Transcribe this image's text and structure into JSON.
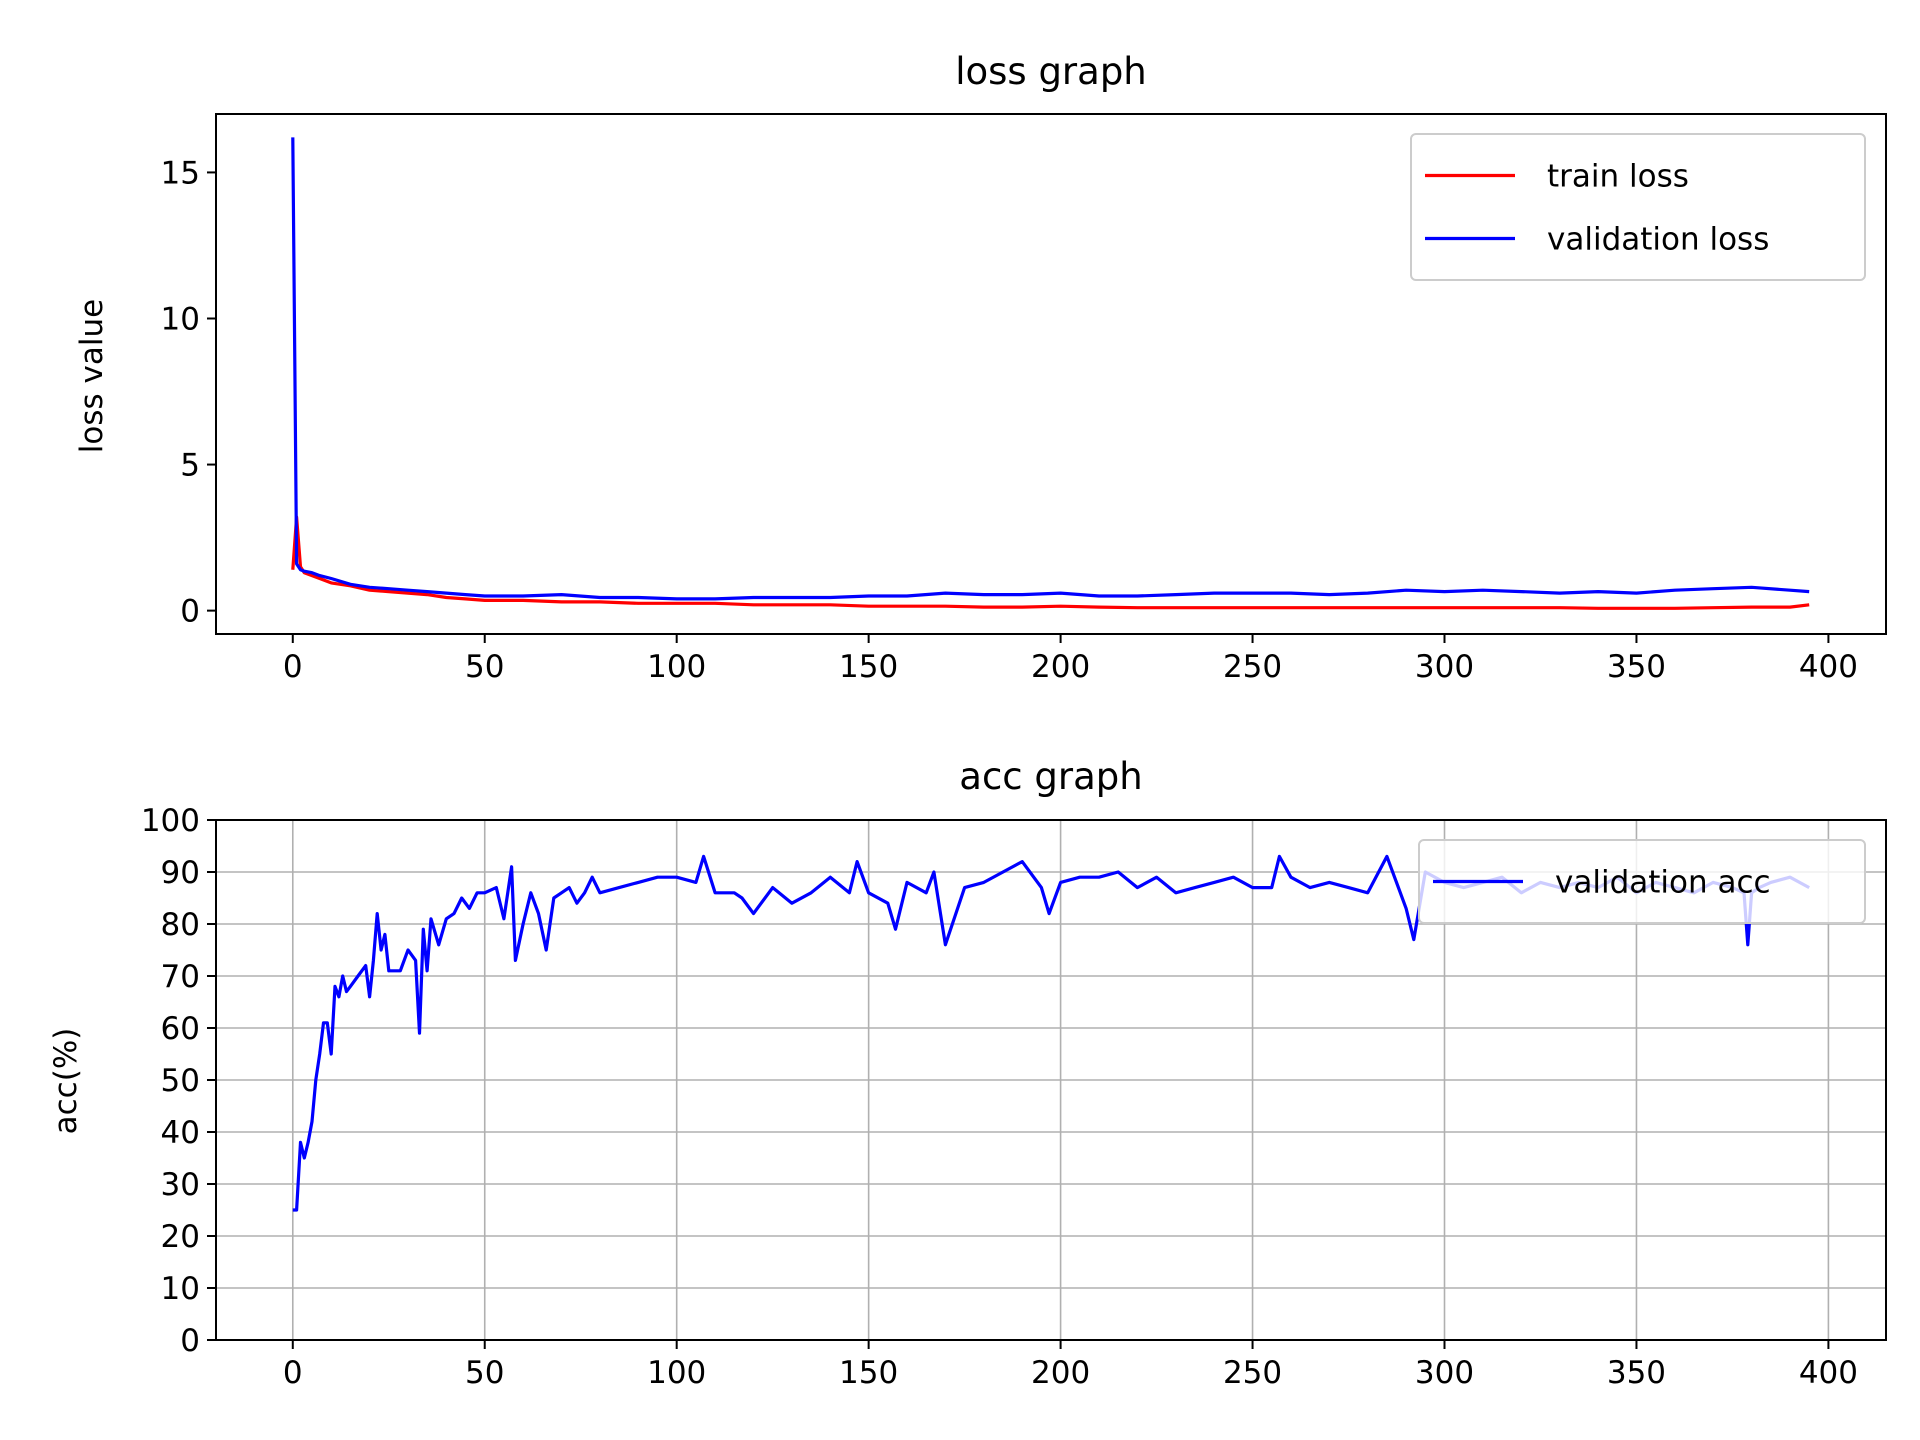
{
  "chart_data": [
    {
      "type": "line",
      "title": "loss graph",
      "xlabel": "",
      "ylabel": "loss value",
      "xlim": [
        -20,
        415
      ],
      "ylim": [
        -0.8,
        17
      ],
      "xticks": [
        0,
        50,
        100,
        150,
        200,
        250,
        300,
        350,
        400
      ],
      "yticks": [
        0,
        5,
        10,
        15
      ],
      "grid": false,
      "legend_position": "top-right",
      "series": [
        {
          "name": "train loss",
          "color": "#ff0000",
          "x": [
            0,
            1,
            2,
            3,
            5,
            7,
            10,
            15,
            20,
            25,
            30,
            35,
            40,
            45,
            50,
            60,
            70,
            80,
            90,
            100,
            110,
            120,
            130,
            140,
            150,
            160,
            170,
            180,
            190,
            200,
            210,
            220,
            230,
            240,
            250,
            260,
            270,
            280,
            290,
            300,
            310,
            320,
            330,
            340,
            350,
            360,
            370,
            380,
            390,
            395
          ],
          "values": [
            1.4,
            3.2,
            1.5,
            1.3,
            1.2,
            1.1,
            0.95,
            0.85,
            0.7,
            0.65,
            0.6,
            0.55,
            0.45,
            0.4,
            0.35,
            0.35,
            0.3,
            0.3,
            0.25,
            0.25,
            0.25,
            0.2,
            0.2,
            0.2,
            0.15,
            0.15,
            0.15,
            0.12,
            0.12,
            0.15,
            0.12,
            0.1,
            0.1,
            0.1,
            0.1,
            0.1,
            0.1,
            0.1,
            0.1,
            0.1,
            0.1,
            0.1,
            0.1,
            0.08,
            0.08,
            0.08,
            0.1,
            0.12,
            0.12,
            0.2
          ]
        },
        {
          "name": "validation loss",
          "color": "#0000ff",
          "x": [
            0,
            1,
            2,
            3,
            5,
            7,
            10,
            15,
            20,
            25,
            30,
            35,
            40,
            45,
            50,
            60,
            70,
            80,
            90,
            100,
            110,
            120,
            130,
            140,
            150,
            160,
            170,
            180,
            190,
            200,
            210,
            220,
            230,
            240,
            250,
            260,
            270,
            280,
            290,
            300,
            310,
            320,
            330,
            340,
            350,
            360,
            370,
            380,
            390,
            395
          ],
          "values": [
            16.2,
            1.6,
            1.4,
            1.35,
            1.3,
            1.2,
            1.1,
            0.9,
            0.8,
            0.75,
            0.7,
            0.65,
            0.6,
            0.55,
            0.5,
            0.5,
            0.55,
            0.45,
            0.45,
            0.4,
            0.4,
            0.45,
            0.45,
            0.45,
            0.5,
            0.5,
            0.6,
            0.55,
            0.55,
            0.6,
            0.5,
            0.5,
            0.55,
            0.6,
            0.6,
            0.6,
            0.55,
            0.6,
            0.7,
            0.65,
            0.7,
            0.65,
            0.6,
            0.65,
            0.6,
            0.7,
            0.75,
            0.8,
            0.7,
            0.65
          ]
        }
      ]
    },
    {
      "type": "line",
      "title": "acc graph",
      "xlabel": "",
      "ylabel": "acc(%)",
      "xlim": [
        -20,
        415
      ],
      "ylim": [
        0,
        100
      ],
      "xticks": [
        0,
        50,
        100,
        150,
        200,
        250,
        300,
        350,
        400
      ],
      "yticks": [
        0,
        10,
        20,
        30,
        40,
        50,
        60,
        70,
        80,
        90,
        100
      ],
      "grid": true,
      "legend_position": "top-right",
      "series": [
        {
          "name": "validation acc",
          "color": "#0000ff",
          "x": [
            0,
            1,
            2,
            3,
            4,
            5,
            6,
            7,
            8,
            9,
            10,
            11,
            12,
            13,
            14,
            15,
            17,
            19,
            20,
            21,
            22,
            23,
            24,
            25,
            28,
            30,
            31,
            32,
            33,
            34,
            35,
            36,
            38,
            40,
            42,
            44,
            46,
            48,
            50,
            53,
            55,
            57,
            58,
            60,
            62,
            64,
            66,
            68,
            70,
            72,
            74,
            76,
            78,
            80,
            85,
            90,
            95,
            100,
            105,
            107,
            110,
            115,
            117,
            120,
            125,
            130,
            135,
            140,
            145,
            147,
            150,
            155,
            157,
            160,
            165,
            167,
            170,
            175,
            180,
            185,
            190,
            195,
            197,
            200,
            205,
            210,
            215,
            220,
            225,
            230,
            235,
            240,
            245,
            250,
            255,
            257,
            260,
            265,
            270,
            275,
            280,
            285,
            290,
            292,
            295,
            300,
            305,
            310,
            315,
            320,
            325,
            330,
            335,
            340,
            345,
            350,
            355,
            360,
            365,
            370,
            375,
            378,
            379,
            380,
            382,
            385,
            390,
            395
          ],
          "values": [
            25,
            25,
            38,
            35,
            38,
            42,
            50,
            55,
            61,
            61,
            55,
            68,
            66,
            70,
            67,
            68,
            70,
            72,
            66,
            73,
            82,
            75,
            78,
            71,
            71,
            75,
            74,
            73,
            59,
            79,
            71,
            81,
            76,
            81,
            82,
            85,
            83,
            86,
            86,
            87,
            81,
            91,
            73,
            80,
            86,
            82,
            75,
            85,
            86,
            87,
            84,
            86,
            89,
            86,
            87,
            88,
            89,
            89,
            88,
            93,
            86,
            86,
            85,
            82,
            87,
            84,
            86,
            89,
            86,
            92,
            86,
            84,
            79,
            88,
            86,
            90,
            76,
            87,
            88,
            90,
            92,
            87,
            82,
            88,
            89,
            89,
            90,
            87,
            89,
            86,
            87,
            88,
            89,
            87,
            87,
            93,
            89,
            87,
            88,
            87,
            86,
            93,
            83,
            77,
            90,
            88,
            87,
            88,
            89,
            86,
            88,
            87,
            88,
            87,
            89,
            86,
            88,
            87,
            86,
            88,
            87,
            86,
            76,
            86,
            87,
            88,
            89,
            87
          ]
        }
      ]
    }
  ]
}
